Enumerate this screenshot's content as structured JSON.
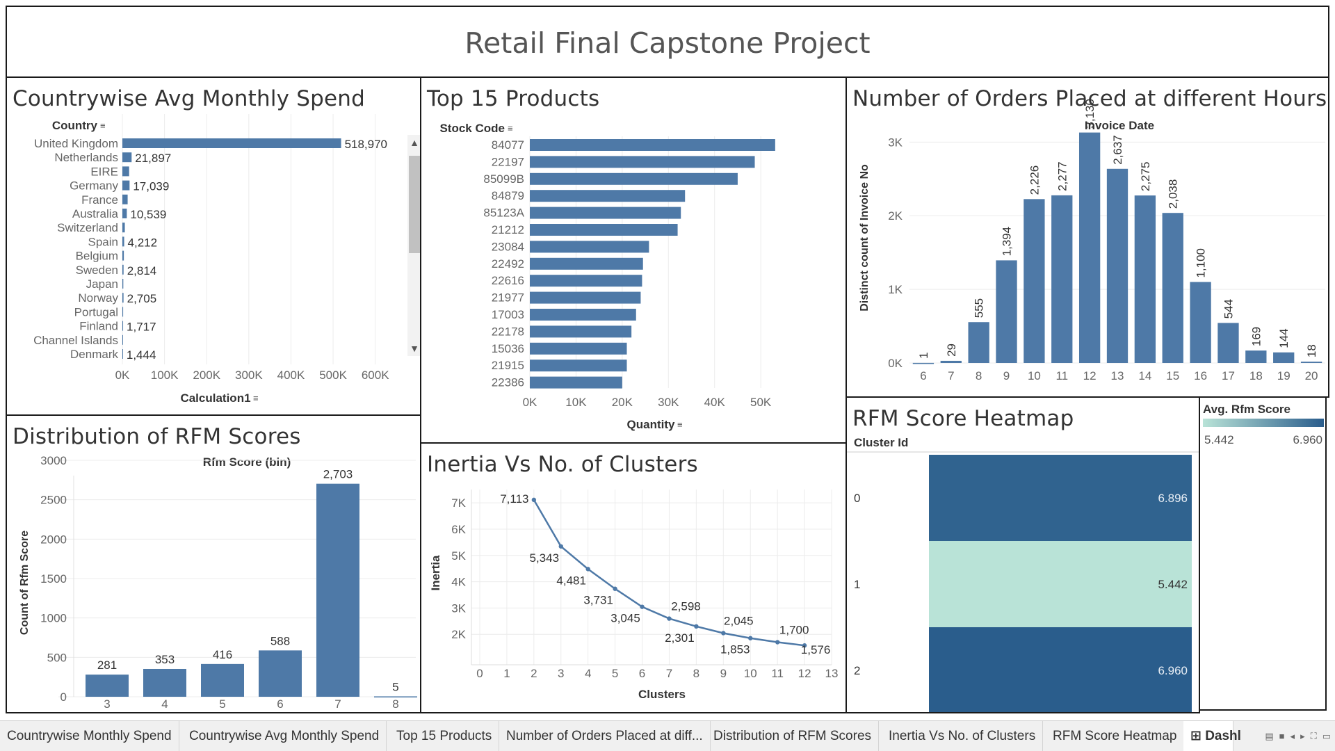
{
  "dashboard_title": "Retail Final Capstone Project",
  "tabs": [
    {
      "label": "Countrywise Monthly Spend",
      "active": false
    },
    {
      "label": "Countrywise Avg Monthly Spend",
      "active": false
    },
    {
      "label": "Top 15 Products",
      "active": false
    },
    {
      "label": "Number of Orders Placed at diff...",
      "active": false
    },
    {
      "label": "Distribution of RFM Scores",
      "active": false
    },
    {
      "label": "Inertia Vs No. of Clusters",
      "active": false
    },
    {
      "label": "RFM Score Heatmap",
      "active": false
    },
    {
      "label": "⊞ Dashl",
      "active": true
    }
  ],
  "colors": {
    "bar": "#4e79a7",
    "grid": "#ececec",
    "heat_low": "#b9e3d7",
    "heat_high": "#2a5d8c"
  },
  "chart_data": [
    {
      "id": "country",
      "type": "bar",
      "orientation": "horizontal",
      "title": "Countrywise Avg Monthly Spend",
      "dim_header": "Country",
      "xlabel": "Calculation1",
      "xlim": [
        0,
        650000
      ],
      "xticks": [
        "0K",
        "100K",
        "200K",
        "300K",
        "400K",
        "500K",
        "600K"
      ],
      "categories": [
        "United Kingdom",
        "Netherlands",
        "EIRE",
        "Germany",
        "France",
        "Australia",
        "Switzerland",
        "Spain",
        "Belgium",
        "Sweden",
        "Japan",
        "Norway",
        "Portugal",
        "Finland",
        "Channel Islands",
        "Denmark"
      ],
      "values": [
        518970,
        21897,
        16000,
        17039,
        12500,
        10539,
        5800,
        4212,
        3500,
        2814,
        2200,
        2705,
        1800,
        1717,
        1600,
        1444
      ],
      "labels": [
        "518,970",
        "21,897",
        "",
        "17,039",
        "",
        "10,539",
        "",
        "4,212",
        "",
        "2,814",
        "",
        "2,705",
        "",
        "1,717",
        "",
        "1,444"
      ]
    },
    {
      "id": "products",
      "type": "bar",
      "orientation": "horizontal",
      "title": "Top 15 Products",
      "dim_header": "Stock Code",
      "xlabel": "Quantity",
      "xlim": [
        0,
        56000
      ],
      "xticks": [
        "0K",
        "10K",
        "20K",
        "30K",
        "40K",
        "50K"
      ],
      "categories": [
        "84077",
        "22197",
        "85099B",
        "84879",
        "85123A",
        "21212",
        "23084",
        "22492",
        "22616",
        "21977",
        "17003",
        "22178",
        "15036",
        "21915",
        "22386"
      ],
      "values": [
        53119,
        48700,
        45000,
        33600,
        32700,
        32000,
        25800,
        24500,
        24300,
        24000,
        23000,
        22000,
        21000,
        21000,
        20000
      ]
    },
    {
      "id": "hours",
      "type": "bar",
      "title": "Number of Orders Placed at different Hours",
      "xlabel": "Invoice Date",
      "ylabel": "Distinct count of Invoice No",
      "ylim": [
        0,
        3400
      ],
      "yticks": [
        "0K",
        "1K",
        "2K",
        "3K"
      ],
      "categories": [
        "6",
        "7",
        "8",
        "9",
        "10",
        "11",
        "12",
        "13",
        "14",
        "15",
        "16",
        "17",
        "18",
        "19",
        "20"
      ],
      "values": [
        1,
        29,
        555,
        1394,
        2226,
        2277,
        3130,
        2637,
        2275,
        2038,
        1100,
        544,
        169,
        144,
        18
      ],
      "labels": [
        "1",
        "29",
        "555",
        "1,394",
        "2,226",
        "2,277",
        "3,130",
        "2,637",
        "2,275",
        "2,038",
        "1,100",
        "544",
        "169",
        "144",
        "18"
      ]
    },
    {
      "id": "rfm",
      "type": "bar",
      "title": "Distribution of RFM Scores",
      "xlabel": "Rfm Score (bin)",
      "ylabel": "Count of Rfm Score",
      "ylim": [
        0,
        3000
      ],
      "yticks": [
        "0",
        "500",
        "1000",
        "1500",
        "2000",
        "2500",
        "3000"
      ],
      "categories": [
        "3",
        "4",
        "5",
        "6",
        "7",
        "8"
      ],
      "values": [
        281,
        353,
        416,
        588,
        2703,
        5
      ],
      "labels": [
        "281",
        "353",
        "416",
        "588",
        "2,703",
        "5"
      ]
    },
    {
      "id": "inertia",
      "type": "line",
      "title": "Inertia Vs No. of Clusters",
      "xlabel": "Clusters",
      "ylabel": "Inertia",
      "xlim": [
        0,
        13
      ],
      "ylim": [
        1000,
        7400
      ],
      "xticks": [
        "0",
        "1",
        "2",
        "3",
        "4",
        "5",
        "6",
        "7",
        "8",
        "9",
        "10",
        "11",
        "12",
        "13"
      ],
      "yticks": [
        "2K",
        "3K",
        "4K",
        "5K",
        "6K",
        "7K"
      ],
      "x": [
        2,
        3,
        4,
        5,
        6,
        7,
        8,
        9,
        10,
        11,
        12
      ],
      "values": [
        7113,
        5343,
        4481,
        3731,
        3045,
        2598,
        2301,
        2045,
        1853,
        1700,
        1576
      ],
      "labels": [
        "7,113",
        "5,343",
        "4,481",
        "3,731",
        "3,045",
        "2,598",
        "2,301",
        "2,045",
        "1,853",
        "1,700",
        "1,576"
      ]
    },
    {
      "id": "heatmap",
      "type": "heatmap",
      "title": "RFM Score Heatmap",
      "dim_header": "Cluster Id",
      "categories": [
        "0",
        "1",
        "2"
      ],
      "values": [
        6.896,
        5.442,
        6.96
      ],
      "labels": [
        "6.896",
        "5.442",
        "6.960"
      ],
      "legend_title": "Avg. Rfm Score",
      "legend_min": "5.442",
      "legend_max": "6.960"
    }
  ]
}
